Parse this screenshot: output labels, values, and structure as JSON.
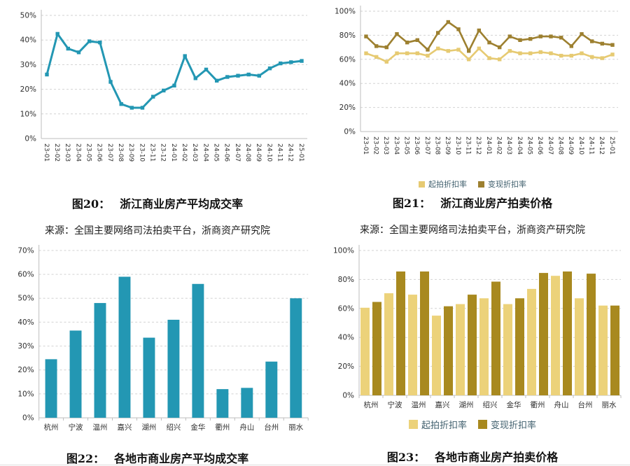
{
  "page": {
    "background": "#ffffff"
  },
  "colors": {
    "teal": "#2397b3",
    "light_gold": "#e6ca72",
    "dark_gold": "#9d8030",
    "light_gold_bar": "#ecd27a",
    "dark_gold_bar": "#a8891f",
    "grid": "#d2d2d2",
    "axis": "#bdbdbd",
    "tick_text": "#2f2f2f",
    "legend_text": "#41606e"
  },
  "figures": {
    "fig20": {
      "caption_label": "图20：",
      "caption_title": "浙江商业房产平均成交率",
      "source": "来源：全国主要网络司法拍卖平台，浙商资产研究院"
    },
    "fig21": {
      "caption_label": "图21：",
      "caption_title": "浙江商业房产拍卖价格",
      "source": "来源：全国主要网络司法拍卖平台，浙商资产研究院"
    },
    "fig22": {
      "caption_label": "图22：",
      "caption_title": "各地市商业房产平均成交率"
    },
    "fig23": {
      "caption_label": "图23：",
      "caption_title": "各地市商业房产拍卖价格"
    }
  },
  "chart_data": [
    {
      "id": "fig20",
      "type": "line",
      "title": "浙江商业房产平均成交率",
      "xlabel": "",
      "ylabel": "",
      "ylim": [
        0,
        50
      ],
      "ytick_step": 10,
      "ytick_format": "percent",
      "grid": true,
      "legend_position": null,
      "x": [
        "23-01",
        "23-02",
        "23-03",
        "23-04",
        "23-05",
        "23-06",
        "23-07",
        "23-08",
        "23-09",
        "23-10",
        "23-11",
        "23-12",
        "24-01",
        "24-02",
        "24-03",
        "24-04",
        "24-05",
        "24-06",
        "24-07",
        "24-08",
        "24-09",
        "24-10",
        "24-11",
        "24-12",
        "25-01"
      ],
      "series": [
        {
          "color_key": "teal",
          "values": [
            26,
            42.5,
            36.5,
            35,
            39.5,
            39,
            23,
            14,
            12.5,
            12.5,
            17,
            19.5,
            21.5,
            33.5,
            24.5,
            28,
            23.5,
            25,
            25.5,
            26,
            25.5,
            28.5,
            30.5,
            31,
            31.5
          ]
        }
      ]
    },
    {
      "id": "fig21",
      "type": "line",
      "title": "浙江商业房产拍卖价格",
      "xlabel": "",
      "ylabel": "",
      "ylim": [
        0,
        100
      ],
      "ytick_step": 20,
      "ytick_format": "percent",
      "grid": true,
      "legend_position": "bottom",
      "x": [
        "23-01",
        "23-02",
        "23-03",
        "23-04",
        "23-05",
        "23-06",
        "23-07",
        "23-08",
        "23-09",
        "23-10",
        "23-11",
        "23-12",
        "24-01",
        "24-02",
        "24-03",
        "24-04",
        "24-05",
        "24-06",
        "24-07",
        "24-08",
        "24-09",
        "24-10",
        "24-11",
        "24-12",
        "25-01"
      ],
      "series": [
        {
          "name": "起拍折扣率",
          "color_key": "light_gold",
          "values": [
            65,
            62,
            58,
            65,
            65,
            65,
            63,
            69,
            67,
            68,
            60,
            69,
            61,
            60,
            67,
            65,
            65,
            66,
            65,
            63,
            63,
            65,
            62,
            61,
            64
          ]
        },
        {
          "name": "变现折扣率",
          "color_key": "dark_gold",
          "values": [
            79,
            71,
            70,
            81,
            74,
            76,
            68,
            82,
            91,
            85,
            67,
            84,
            74,
            70,
            79,
            76,
            77,
            79,
            79,
            78,
            71,
            81,
            75,
            73,
            72
          ]
        }
      ]
    },
    {
      "id": "fig22",
      "type": "bar",
      "title": "各地市商业房产平均成交率",
      "xlabel": "",
      "ylabel": "",
      "ylim": [
        0,
        70
      ],
      "ytick_step": 10,
      "ytick_format": "percent",
      "grid": true,
      "legend_position": null,
      "categories": [
        "杭州",
        "宁波",
        "温州",
        "嘉兴",
        "湖州",
        "绍兴",
        "金华",
        "衢州",
        "舟山",
        "台州",
        "丽水"
      ],
      "series": [
        {
          "color_key": "teal",
          "values": [
            24.5,
            36.5,
            48,
            59,
            33.5,
            41,
            56,
            12,
            12.5,
            23.5,
            50
          ]
        }
      ]
    },
    {
      "id": "fig23",
      "type": "bar",
      "title": "各地市商业房产拍卖价格",
      "xlabel": "",
      "ylabel": "",
      "ylim": [
        0,
        100
      ],
      "ytick_step": 20,
      "ytick_format": "percent",
      "grid": true,
      "legend_position": "bottom",
      "categories": [
        "杭州",
        "宁波",
        "温州",
        "嘉兴",
        "湖州",
        "绍兴",
        "金华",
        "衢州",
        "舟山",
        "台州",
        "丽水"
      ],
      "series": [
        {
          "name": "起拍折扣率",
          "color_key": "light_gold_bar",
          "values": [
            60.5,
            70.5,
            69.5,
            55,
            63,
            67,
            63,
            73.5,
            82.5,
            67,
            62
          ]
        },
        {
          "name": "变现折扣率",
          "color_key": "dark_gold_bar",
          "values": [
            64.5,
            85.5,
            85.5,
            61.5,
            69.5,
            78.5,
            67,
            84.5,
            85.5,
            84,
            62
          ]
        }
      ]
    }
  ]
}
